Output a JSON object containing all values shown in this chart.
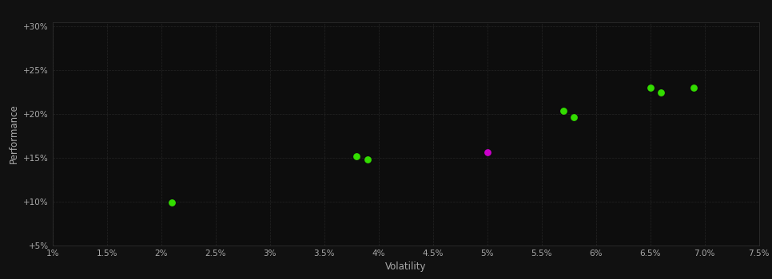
{
  "background_color": "#111111",
  "plot_bg_color": "#0d0d0d",
  "grid_color": "#2a2a2a",
  "text_color": "#aaaaaa",
  "xlabel": "Volatility",
  "ylabel": "Performance",
  "xlim": [
    0.01,
    0.075
  ],
  "ylim": [
    0.05,
    0.305
  ],
  "xticks": [
    0.01,
    0.015,
    0.02,
    0.025,
    0.03,
    0.035,
    0.04,
    0.045,
    0.05,
    0.055,
    0.06,
    0.065,
    0.07,
    0.075
  ],
  "yticks": [
    0.05,
    0.1,
    0.15,
    0.2,
    0.25,
    0.3
  ],
  "green_points": [
    [
      0.021,
      0.099
    ],
    [
      0.038,
      0.152
    ],
    [
      0.039,
      0.148
    ],
    [
      0.057,
      0.204
    ],
    [
      0.058,
      0.197
    ],
    [
      0.065,
      0.23
    ],
    [
      0.066,
      0.225
    ],
    [
      0.069,
      0.23
    ]
  ],
  "magenta_points": [
    [
      0.05,
      0.157
    ]
  ],
  "point_size": 28,
  "green_color": "#33dd00",
  "magenta_color": "#cc00cc",
  "figsize": [
    9.66,
    3.5
  ],
  "dpi": 100
}
